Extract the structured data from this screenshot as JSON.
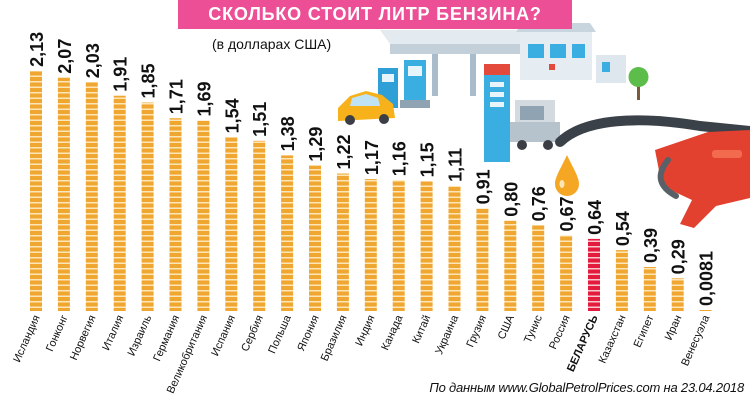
{
  "colors": {
    "banner": "#ec4f96",
    "bar": "#f0a732",
    "bar_line": "#fde6b6",
    "highlight": "#e31b3c",
    "highlight_line": "#f9c6ce"
  },
  "chart_data": {
    "type": "bar",
    "title": "СКОЛЬКО СТОИТ ЛИТР БЕНЗИНА?",
    "subtitle": "(в долларах США)",
    "source": "По данным www.GlobalPetrolPrices.com на 23.04.2018",
    "categories": [
      "Исландия",
      "Гонконг",
      "Норвегия",
      "Италия",
      "Израиль",
      "Германия",
      "Великобритания",
      "Испания",
      "Сербия",
      "Польша",
      "Япония",
      "Бразилия",
      "Индия",
      "Канада",
      "Китай",
      "Украина",
      "Грузия",
      "США",
      "Тунис",
      "Россия",
      "БЕЛАРУСЬ",
      "Казахстан",
      "Египет",
      "Иран",
      "Венесуэла"
    ],
    "values": [
      2.13,
      2.07,
      2.03,
      1.91,
      1.85,
      1.71,
      1.69,
      1.54,
      1.51,
      1.38,
      1.29,
      1.22,
      1.17,
      1.16,
      1.15,
      1.11,
      0.91,
      0.8,
      0.76,
      0.67,
      0.64,
      0.54,
      0.39,
      0.29,
      0.0081
    ],
    "value_labels": [
      "2,13",
      "2,07",
      "2,03",
      "1,91",
      "1,85",
      "1,71",
      "1,69",
      "1,54",
      "1,51",
      "1,38",
      "1,29",
      "1,22",
      "1,17",
      "1,16",
      "1,15",
      "1,11",
      "0,91",
      "0,80",
      "0,76",
      "0,67",
      "0,64",
      "0,54",
      "0,39",
      "0,29",
      "0,0081"
    ],
    "highlight_index": 20,
    "ylim": [
      0,
      2.2
    ],
    "grid": false
  }
}
